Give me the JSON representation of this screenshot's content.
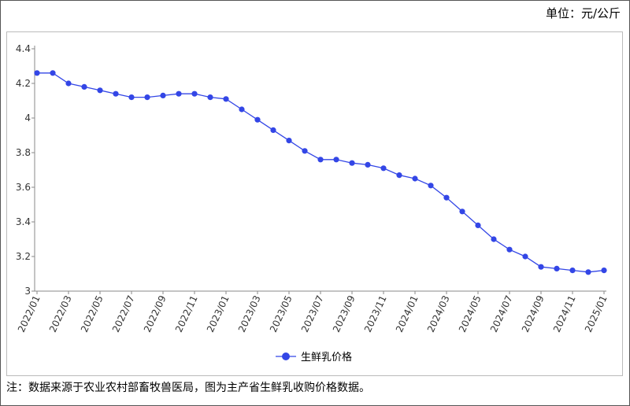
{
  "chart_data": {
    "type": "line",
    "unit_label": "单位：元/公斤",
    "note": "注：数据来源于农业农村部畜牧兽医局，图为主产省生鲜乳收购价格数据。",
    "categories": [
      "2022/01",
      null,
      "2022/03",
      null,
      "2022/05",
      null,
      "2022/07",
      null,
      "2022/09",
      null,
      "2022/11",
      null,
      "2023/01",
      null,
      "2023/03",
      null,
      "2023/05",
      null,
      "2023/07",
      null,
      "2023/09",
      null,
      "2023/11",
      null,
      "2024/01",
      null,
      "2024/03",
      null,
      "2024/05",
      null,
      "2024/07",
      null,
      "2024/09",
      null,
      "2024/11",
      null,
      "2025/01"
    ],
    "series": [
      {
        "name": "生鲜乳价格",
        "color": "#3346e6",
        "values": [
          4.26,
          4.26,
          4.2,
          4.18,
          4.16,
          4.14,
          4.12,
          4.12,
          4.13,
          4.14,
          4.14,
          4.12,
          4.11,
          4.05,
          3.99,
          3.93,
          3.87,
          3.81,
          3.76,
          3.76,
          3.74,
          3.73,
          3.71,
          3.67,
          3.65,
          3.61,
          3.54,
          3.46,
          3.38,
          3.3,
          3.24,
          3.2,
          3.14,
          3.13,
          3.12,
          3.11,
          3.12
        ]
      }
    ],
    "ylim": [
      3,
      4.4
    ],
    "yticks": [
      3,
      3.2,
      3.4,
      3.6,
      3.8,
      4,
      4.2,
      4.4
    ],
    "grid": false
  }
}
